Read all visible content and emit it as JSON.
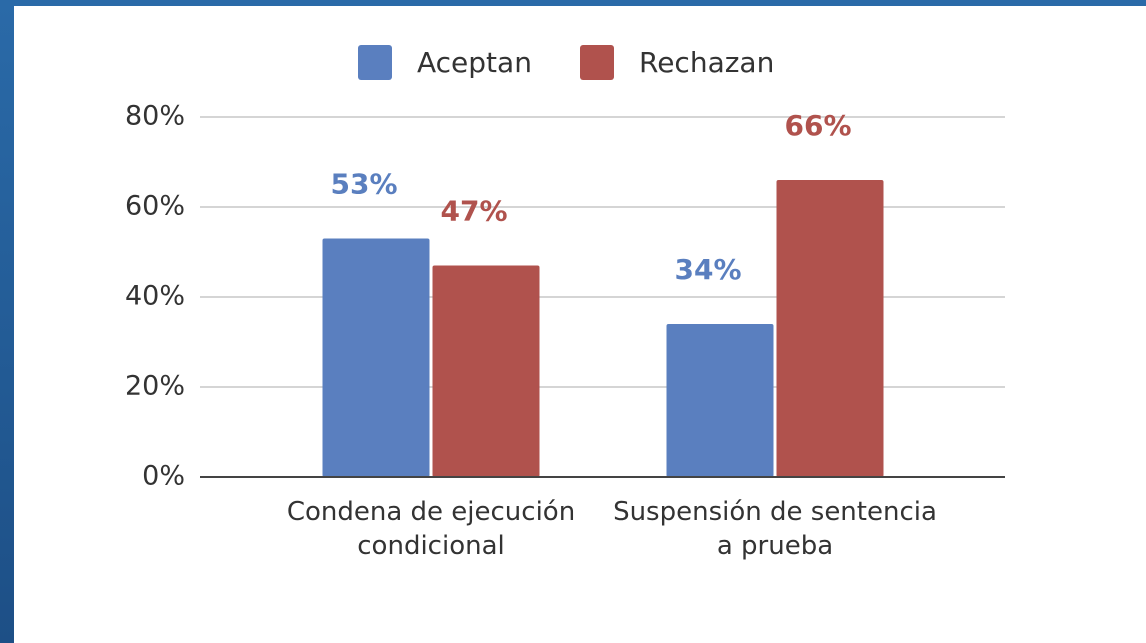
{
  "chart_data": {
    "type": "bar",
    "categories": [
      "Condena de ejecución condicional",
      "Suspensión de sentencia a prueba"
    ],
    "series": [
      {
        "name": "Aceptan",
        "color": "#5a7fbf",
        "values": [
          53,
          34
        ],
        "value_labels": [
          "53%",
          "34%"
        ]
      },
      {
        "name": "Rechazan",
        "color": "#b0524d",
        "values": [
          47,
          66
        ],
        "value_labels": [
          "47%",
          "66%"
        ]
      }
    ],
    "ylim": [
      0,
      80
    ],
    "yticks": [
      {
        "value": 0,
        "label": "0%"
      },
      {
        "value": 20,
        "label": "20%"
      },
      {
        "value": 40,
        "label": "40%"
      },
      {
        "value": 60,
        "label": "60%"
      },
      {
        "value": 80,
        "label": "80%"
      }
    ],
    "grid": true,
    "legend": "top"
  }
}
